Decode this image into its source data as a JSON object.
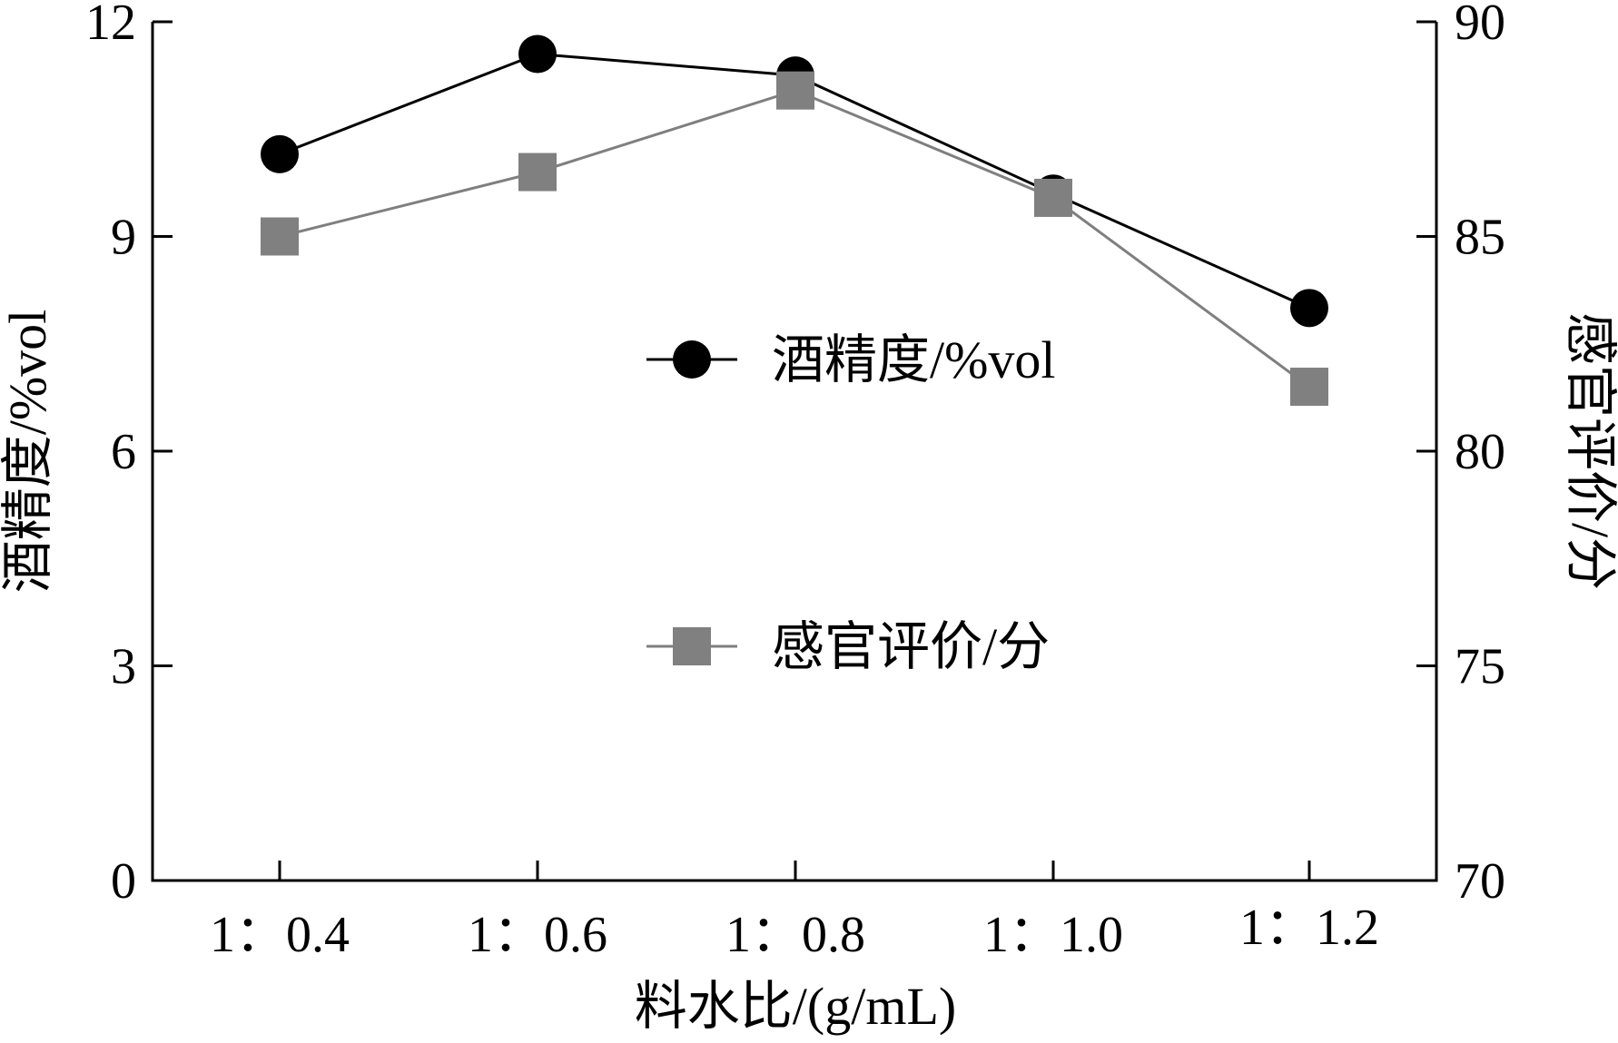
{
  "chart_data": {
    "type": "line",
    "xlabel": "料水比/(g/mL)",
    "categories": [
      "1：0.4",
      "1：0.6",
      "1：0.8",
      "1：1.0",
      "1：1.2"
    ],
    "y_left": {
      "label": "酒精度/%vol",
      "ylim": [
        0,
        12
      ],
      "ticks": [
        0,
        3,
        6,
        9,
        12
      ]
    },
    "y_right": {
      "label": "感官评价/分",
      "ylim": [
        70,
        90
      ],
      "ticks": [
        70,
        75,
        80,
        85,
        90
      ]
    },
    "series": [
      {
        "name": "酒精度/%vol",
        "axis": "left",
        "marker": "circle",
        "color": "#000000",
        "values": [
          10.15,
          11.55,
          11.25,
          9.6,
          8.0
        ]
      },
      {
        "name": "感官评价/分",
        "axis": "right",
        "marker": "square",
        "color": "#808080",
        "values": [
          85.0,
          86.5,
          88.4,
          85.9,
          81.5
        ]
      }
    ],
    "legend_position": "center",
    "grid": false
  }
}
